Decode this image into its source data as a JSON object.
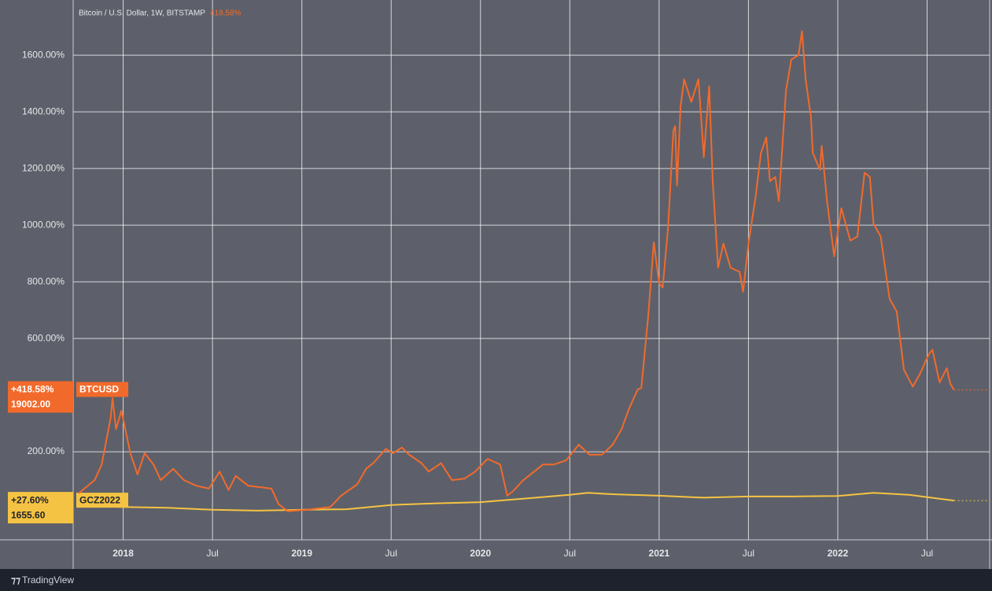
{
  "chart_data": {
    "type": "line",
    "title": "Bitcoin / U.S. Dollar, 1W, BITSTAMP",
    "title_value": "418.58%",
    "footer": "TradingView",
    "xlim": [
      2017.72,
      2022.85
    ],
    "ylim": [
      -111,
      1795
    ],
    "grid": true,
    "xticks": [
      {
        "value": 2018,
        "label": "2018"
      },
      {
        "value": 2018.5,
        "label": "Jul"
      },
      {
        "value": 2019,
        "label": "2019"
      },
      {
        "value": 2019.5,
        "label": "Jul"
      },
      {
        "value": 2020,
        "label": "2020"
      },
      {
        "value": 2020.5,
        "label": "Jul"
      },
      {
        "value": 2021,
        "label": "2021"
      },
      {
        "value": 2021.5,
        "label": "Jul"
      },
      {
        "value": 2022,
        "label": "2022"
      },
      {
        "value": 2022.5,
        "label": "Jul"
      }
    ],
    "yticks": [
      {
        "value": 200,
        "label": "200.00%"
      },
      {
        "value": 600,
        "label": "600.00%"
      },
      {
        "value": 800,
        "label": "800.00%"
      },
      {
        "value": 1000,
        "label": "1000.00%"
      },
      {
        "value": 1200,
        "label": "1200.00%"
      },
      {
        "value": 1400,
        "label": "1400.00%"
      },
      {
        "value": 1600,
        "label": "1600.00%"
      }
    ],
    "series": [
      {
        "name": "BTCUSD",
        "color": "#f26a2b",
        "last_label": "+418.58%",
        "last_price": "19002.00",
        "x": [
          2017.75,
          2017.84,
          2017.88,
          2017.93,
          2017.94,
          2017.96,
          2017.99,
          2018.04,
          2018.08,
          2018.12,
          2018.17,
          2018.21,
          2018.28,
          2018.34,
          2018.41,
          2018.48,
          2018.54,
          2018.59,
          2018.63,
          2018.7,
          2018.83,
          2018.87,
          2018.92,
          2019.03,
          2019.16,
          2019.22,
          2019.31,
          2019.36,
          2019.4,
          2019.47,
          2019.51,
          2019.56,
          2019.6,
          2019.67,
          2019.71,
          2019.78,
          2019.84,
          2019.91,
          2019.97,
          2020.04,
          2020.11,
          2020.15,
          2020.18,
          2020.24,
          2020.3,
          2020.35,
          2020.41,
          2020.48,
          2020.55,
          2020.61,
          2020.68,
          2020.74,
          2020.79,
          2020.83,
          2020.88,
          2020.9,
          2020.94,
          2020.97,
          2021.0,
          2021.02,
          2021.05,
          2021.08,
          2021.09,
          2021.1,
          2021.12,
          2021.14,
          2021.18,
          2021.22,
          2021.24,
          2021.25,
          2021.28,
          2021.3,
          2021.33,
          2021.36,
          2021.4,
          2021.45,
          2021.47,
          2021.5,
          2021.54,
          2021.57,
          2021.6,
          2021.62,
          2021.65,
          2021.67,
          2021.71,
          2021.74,
          2021.78,
          2021.8,
          2021.82,
          2021.85,
          2021.86,
          2021.9,
          2021.91,
          2021.94,
          2021.98,
          2022.02,
          2022.07,
          2022.11,
          2022.15,
          2022.18,
          2022.2,
          2022.24,
          2022.29,
          2022.33,
          2022.37,
          2022.42,
          2022.46,
          2022.51,
          2022.53,
          2022.57,
          2022.61,
          2022.63,
          2022.65
        ],
        "values": [
          53,
          100,
          155,
          320,
          390,
          280,
          345,
          195,
          120,
          195,
          155,
          100,
          140,
          100,
          80,
          70,
          130,
          65,
          115,
          80,
          70,
          15,
          -10,
          -5,
          5,
          45,
          85,
          140,
          160,
          210,
          195,
          215,
          190,
          160,
          130,
          160,
          100,
          105,
          130,
          175,
          155,
          45,
          60,
          100,
          130,
          155,
          155,
          170,
          225,
          190,
          190,
          225,
          280,
          350,
          420,
          425,
          685,
          940,
          795,
          780,
          990,
          1335,
          1350,
          1140,
          1420,
          1515,
          1435,
          1515,
          1335,
          1240,
          1490,
          1155,
          850,
          935,
          850,
          835,
          765,
          935,
          1100,
          1255,
          1310,
          1155,
          1170,
          1085,
          1475,
          1585,
          1600,
          1685,
          1515,
          1380,
          1255,
          1195,
          1280,
          1085,
          890,
          1060,
          945,
          960,
          1185,
          1170,
          1005,
          960,
          740,
          695,
          490,
          430,
          475,
          545,
          560,
          445,
          495,
          440,
          418.58
        ]
      },
      {
        "name": "GCZ2022",
        "color": "#f5c343",
        "last_label": "+27.60%",
        "last_price": "1655.60",
        "x": [
          2017.75,
          2018.0,
          2018.25,
          2018.5,
          2018.75,
          2019.0,
          2019.25,
          2019.5,
          2019.75,
          2020.0,
          2020.25,
          2020.5,
          2020.6,
          2020.75,
          2021.0,
          2021.25,
          2021.5,
          2021.75,
          2022.0,
          2022.2,
          2022.4,
          2022.5,
          2022.65
        ],
        "values": [
          8,
          5,
          2,
          -5,
          -8,
          -5,
          -3,
          12,
          18,
          22,
          35,
          48,
          55,
          50,
          45,
          38,
          42,
          42,
          44,
          55,
          48,
          40,
          27.6
        ]
      }
    ]
  }
}
